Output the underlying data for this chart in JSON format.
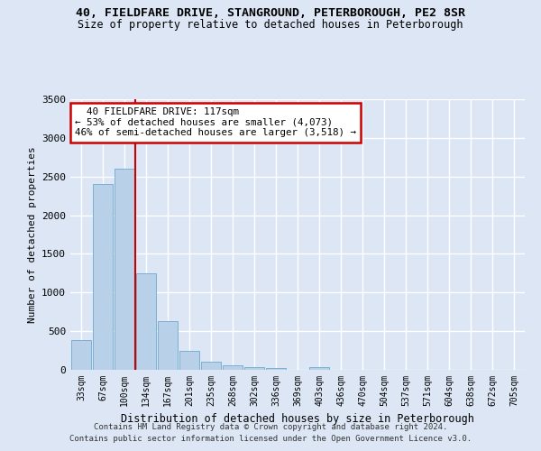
{
  "title_line1": "40, FIELDFARE DRIVE, STANGROUND, PETERBOROUGH, PE2 8SR",
  "title_line2": "Size of property relative to detached houses in Peterborough",
  "xlabel": "Distribution of detached houses by size in Peterborough",
  "ylabel": "Number of detached properties",
  "categories": [
    "33sqm",
    "67sqm",
    "100sqm",
    "134sqm",
    "167sqm",
    "201sqm",
    "235sqm",
    "268sqm",
    "302sqm",
    "336sqm",
    "369sqm",
    "403sqm",
    "436sqm",
    "470sqm",
    "504sqm",
    "537sqm",
    "571sqm",
    "604sqm",
    "638sqm",
    "672sqm",
    "705sqm"
  ],
  "values": [
    390,
    2400,
    2600,
    1250,
    635,
    250,
    105,
    60,
    40,
    25,
    5,
    40,
    0,
    0,
    0,
    0,
    0,
    0,
    0,
    0,
    0
  ],
  "bar_color": "#b8d0e8",
  "bar_edge_color": "#7aafd4",
  "vertical_line_color": "#cc0000",
  "annotation_text": "  40 FIELDFARE DRIVE: 117sqm\n← 53% of detached houses are smaller (4,073)\n46% of semi-detached houses are larger (3,518) →",
  "annotation_box_color": "#ffffff",
  "annotation_box_edge_color": "#cc0000",
  "background_color": "#dce6f5",
  "fig_background_color": "#dce6f5",
  "grid_color": "#ffffff",
  "ylim": [
    0,
    3500
  ],
  "yticks": [
    0,
    500,
    1000,
    1500,
    2000,
    2500,
    3000,
    3500
  ],
  "footer_line1": "Contains HM Land Registry data © Crown copyright and database right 2024.",
  "footer_line2": "Contains public sector information licensed under the Open Government Licence v3.0."
}
